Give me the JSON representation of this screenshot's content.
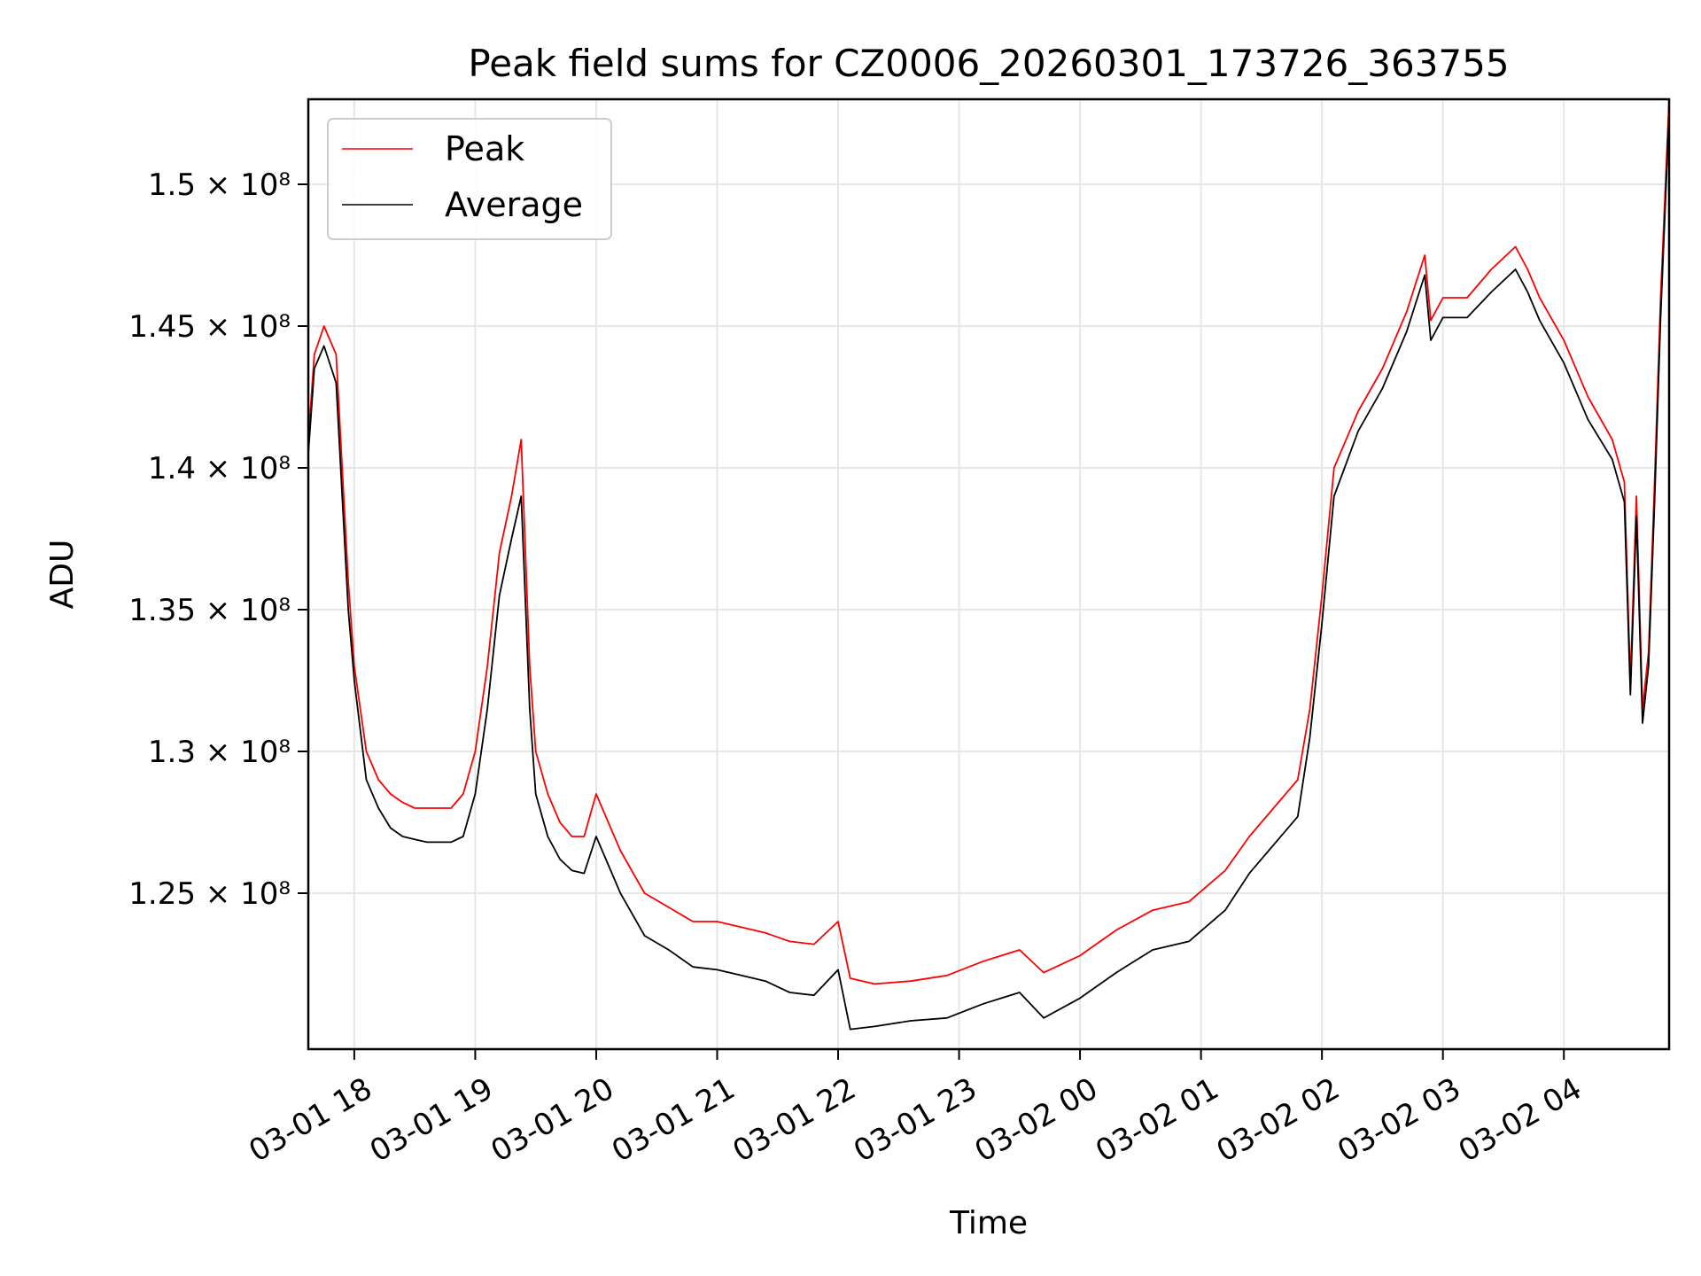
{
  "chart_data": {
    "type": "line",
    "title": "Peak field sums for CZ0006_20260301_173726_363755",
    "xlabel": "Time",
    "ylabel": "ADU",
    "x_range_hours": [
      -0.38,
      10.87
    ],
    "y_range": [
      119500000.0,
      153000000.0
    ],
    "x_ticks": [
      {
        "hour": 0,
        "label": "03-01 18"
      },
      {
        "hour": 1,
        "label": "03-01 19"
      },
      {
        "hour": 2,
        "label": "03-01 20"
      },
      {
        "hour": 3,
        "label": "03-01 21"
      },
      {
        "hour": 4,
        "label": "03-01 22"
      },
      {
        "hour": 5,
        "label": "03-01 23"
      },
      {
        "hour": 6,
        "label": "03-02 00"
      },
      {
        "hour": 7,
        "label": "03-02 01"
      },
      {
        "hour": 8,
        "label": "03-02 02"
      },
      {
        "hour": 9,
        "label": "03-02 03"
      },
      {
        "hour": 10,
        "label": "03-02 04"
      }
    ],
    "y_ticks": [
      {
        "value": 125000000.0,
        "label": "1.25 × 10⁸"
      },
      {
        "value": 130000000.0,
        "label": "1.3 × 10⁸"
      },
      {
        "value": 135000000.0,
        "label": "1.35 × 10⁸"
      },
      {
        "value": 140000000.0,
        "label": "1.4 × 10⁸"
      },
      {
        "value": 145000000.0,
        "label": "1.45 × 10⁸"
      },
      {
        "value": 150000000.0,
        "label": "1.5 × 10⁸"
      }
    ],
    "grid": true,
    "legend_position": "top-left",
    "series": [
      {
        "name": "Peak",
        "color": "#ff0000",
        "x": [
          -0.38,
          -0.33,
          -0.25,
          -0.15,
          -0.05,
          0.0,
          0.1,
          0.2,
          0.3,
          0.4,
          0.5,
          0.6,
          0.7,
          0.8,
          0.9,
          1.0,
          1.1,
          1.2,
          1.3,
          1.38,
          1.45,
          1.5,
          1.6,
          1.7,
          1.8,
          1.9,
          2.0,
          2.2,
          2.4,
          2.6,
          2.8,
          3.0,
          3.2,
          3.4,
          3.6,
          3.8,
          4.0,
          4.1,
          4.3,
          4.6,
          4.9,
          5.2,
          5.5,
          5.7,
          6.0,
          6.3,
          6.6,
          6.9,
          7.2,
          7.4,
          7.6,
          7.8,
          7.9,
          8.0,
          8.1,
          8.3,
          8.5,
          8.7,
          8.85,
          8.9,
          9.0,
          9.2,
          9.4,
          9.6,
          9.7,
          9.8,
          10.0,
          10.2,
          10.4,
          10.5,
          10.55,
          10.6,
          10.65,
          10.7,
          10.75,
          10.8,
          10.87
        ],
        "y": [
          141000000,
          144000000,
          145000000,
          144000000,
          136000000,
          133000000,
          130000000,
          129000000,
          128500000,
          128200000,
          128000000,
          128000000,
          128000000,
          128000000,
          128500000,
          130000000,
          133000000,
          137000000,
          139000000,
          141000000,
          133000000,
          130000000,
          128500000,
          127500000,
          127000000,
          127000000,
          128500000,
          126500000,
          125000000,
          124500000,
          124000000,
          124000000,
          123800000,
          123600000,
          123300000,
          123200000,
          124000000,
          122000000,
          121800000,
          121900000,
          122100000,
          122600000,
          123000000,
          122200000,
          122800000,
          123700000,
          124400000,
          124700000,
          125800000,
          127000000,
          128000000,
          129000000,
          131500000,
          135500000,
          140000000,
          142000000,
          143500000,
          145500000,
          147500000,
          145200000,
          146000000,
          146000000,
          147000000,
          147800000,
          147000000,
          146000000,
          144500000,
          142500000,
          141000000,
          139500000,
          132500000,
          139000000,
          131500000,
          133500000,
          139500000,
          146000000,
          153000000
        ]
      },
      {
        "name": "Average",
        "color": "#000000",
        "x": [
          -0.38,
          -0.33,
          -0.25,
          -0.15,
          -0.05,
          0.0,
          0.1,
          0.2,
          0.3,
          0.4,
          0.5,
          0.6,
          0.7,
          0.8,
          0.9,
          1.0,
          1.1,
          1.2,
          1.3,
          1.38,
          1.45,
          1.5,
          1.6,
          1.7,
          1.8,
          1.9,
          2.0,
          2.2,
          2.4,
          2.6,
          2.8,
          3.0,
          3.2,
          3.4,
          3.6,
          3.8,
          4.0,
          4.1,
          4.3,
          4.6,
          4.9,
          5.2,
          5.5,
          5.7,
          6.0,
          6.3,
          6.6,
          6.9,
          7.2,
          7.4,
          7.6,
          7.8,
          7.9,
          8.0,
          8.1,
          8.3,
          8.5,
          8.7,
          8.85,
          8.9,
          9.0,
          9.2,
          9.4,
          9.6,
          9.7,
          9.8,
          10.0,
          10.2,
          10.4,
          10.5,
          10.55,
          10.6,
          10.65,
          10.7,
          10.75,
          10.8,
          10.87
        ],
        "y": [
          140500000,
          143500000,
          144300000,
          143000000,
          135000000,
          132500000,
          129000000,
          128000000,
          127300000,
          127000000,
          126900000,
          126800000,
          126800000,
          126800000,
          127000000,
          128500000,
          131500000,
          135500000,
          137500000,
          139000000,
          131500000,
          128500000,
          127000000,
          126200000,
          125800000,
          125700000,
          127000000,
          125000000,
          123500000,
          123000000,
          122400000,
          122300000,
          122100000,
          121900000,
          121500000,
          121400000,
          122300000,
          120200000,
          120300000,
          120500000,
          120600000,
          121100000,
          121500000,
          120600000,
          121300000,
          122200000,
          123000000,
          123300000,
          124400000,
          125700000,
          126700000,
          127700000,
          130500000,
          134500000,
          139000000,
          141300000,
          142800000,
          144800000,
          146800000,
          144500000,
          145300000,
          145300000,
          146200000,
          147000000,
          146200000,
          145200000,
          143700000,
          141700000,
          140300000,
          138800000,
          132000000,
          138300000,
          131000000,
          133000000,
          138800000,
          145300000,
          152500000
        ]
      }
    ]
  }
}
